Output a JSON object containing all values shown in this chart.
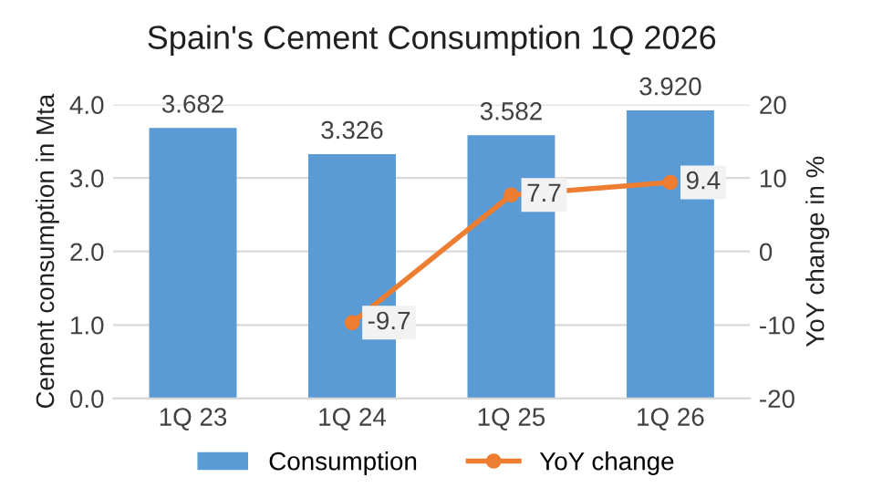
{
  "chart_data": {
    "type": "bar",
    "title": "Spain's Cement Consumption 1Q 2026",
    "ylabel": "Cement consumption in Mta",
    "y2label": "YoY change in %",
    "categories": [
      "1Q 23",
      "1Q 24",
      "1Q 25",
      "1Q 26"
    ],
    "series": [
      {
        "name": "Consumption",
        "color": "#5b9bd5",
        "values": [
          3.682,
          3.326,
          3.582,
          3.92
        ],
        "value_labels": [
          "3.682",
          "3.326",
          "3.582",
          "3.920"
        ]
      },
      {
        "name": "YoY change",
        "type": "line",
        "axis": "y2",
        "color": "#ed7d31",
        "marker": "circle",
        "values": [
          null,
          -9.7,
          7.7,
          9.4
        ],
        "value_labels": [
          null,
          "-9.7",
          "7.7",
          "9.4"
        ]
      }
    ],
    "ylim": [
      0,
      4
    ],
    "yticks": [
      {
        "value": 0,
        "label": "0.0"
      },
      {
        "value": 1,
        "label": "1.0"
      },
      {
        "value": 2,
        "label": "2.0"
      },
      {
        "value": 3,
        "label": "3.0"
      },
      {
        "value": 4,
        "label": "4.0"
      }
    ],
    "y2lim": [
      -20,
      20
    ],
    "y2ticks": [
      -20,
      -10,
      0,
      10,
      20
    ],
    "grid": "y",
    "legend": "bottom"
  }
}
